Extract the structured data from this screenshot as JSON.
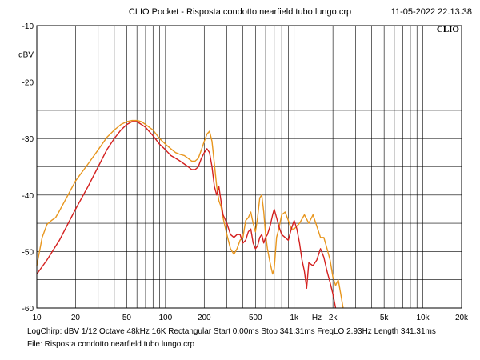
{
  "header": {
    "title": "CLIO Pocket - Risposta condotto nearfield tubo lungo.crp",
    "date": "11-05-2022 22.13.38",
    "brand": "CLIO"
  },
  "footer": {
    "settings": "LogChirp:  dBV  1/12 Octave  48kHz  16K  Rectangular  Start 0.00ms   Stop 341.31ms   FreqLO 2.93Hz   Length 341.31ms",
    "file": "File: Risposta condotto nearfield tubo lungo.crp"
  },
  "chart_data": {
    "type": "line",
    "title": "CLIO Pocket - Risposta condotto nearfield tubo lungo.crp",
    "xlabel": "Hz",
    "ylabel": "dBV",
    "xscale": "log",
    "xlim": [
      10,
      20000
    ],
    "ylim": [
      -60,
      -10
    ],
    "grid": true,
    "x_ticks": [
      {
        "value": 10,
        "label": "10"
      },
      {
        "value": 20,
        "label": "20"
      },
      {
        "value": 50,
        "label": "50"
      },
      {
        "value": 100,
        "label": "100"
      },
      {
        "value": 200,
        "label": "200"
      },
      {
        "value": 500,
        "label": "500"
      },
      {
        "value": 1000,
        "label": "1k"
      },
      {
        "value": 2000,
        "label": "2k"
      },
      {
        "value": 5000,
        "label": "5k"
      },
      {
        "value": 10000,
        "label": "10k"
      },
      {
        "value": 20000,
        "label": "20k"
      }
    ],
    "x_unit_label": {
      "value": 1500,
      "label": "Hz"
    },
    "y_ticks": [
      {
        "value": -10,
        "label": "-10"
      },
      {
        "value": -20,
        "label": "-20"
      },
      {
        "value": -30,
        "label": "-30"
      },
      {
        "value": -40,
        "label": "-40"
      },
      {
        "value": -50,
        "label": "-50"
      },
      {
        "value": -60,
        "label": "-60"
      }
    ],
    "y_unit_label": {
      "value": -15,
      "label": "dBV"
    },
    "series": [
      {
        "color": "#e8961e",
        "points": [
          [
            10,
            -52.5
          ],
          [
            11,
            -47.5
          ],
          [
            12,
            -45.2
          ],
          [
            13,
            -44.5
          ],
          [
            14,
            -44.0
          ],
          [
            15,
            -42.8
          ],
          [
            17,
            -40.5
          ],
          [
            20,
            -37.5
          ],
          [
            25,
            -34.5
          ],
          [
            30,
            -32.0
          ],
          [
            35,
            -29.8
          ],
          [
            40,
            -28.5
          ],
          [
            45,
            -27.5
          ],
          [
            50,
            -27.0
          ],
          [
            55,
            -26.8
          ],
          [
            60,
            -26.8
          ],
          [
            65,
            -27.0
          ],
          [
            70,
            -27.5
          ],
          [
            80,
            -28.5
          ],
          [
            90,
            -30.0
          ],
          [
            100,
            -31.0
          ],
          [
            110,
            -31.8
          ],
          [
            120,
            -32.5
          ],
          [
            130,
            -32.8
          ],
          [
            140,
            -33.0
          ],
          [
            150,
            -33.5
          ],
          [
            160,
            -34.0
          ],
          [
            170,
            -34.0
          ],
          [
            180,
            -33.5
          ],
          [
            190,
            -32.0
          ],
          [
            200,
            -30.5
          ],
          [
            210,
            -29.2
          ],
          [
            220,
            -28.7
          ],
          [
            230,
            -30.5
          ],
          [
            240,
            -34.5
          ],
          [
            250,
            -38.5
          ],
          [
            260,
            -41.0
          ],
          [
            270,
            -42.0
          ],
          [
            280,
            -44.0
          ],
          [
            300,
            -47.0
          ],
          [
            320,
            -49.5
          ],
          [
            340,
            -50.5
          ],
          [
            360,
            -49.5
          ],
          [
            380,
            -48.0
          ],
          [
            400,
            -47.5
          ],
          [
            420,
            -44.5
          ],
          [
            440,
            -44.0
          ],
          [
            460,
            -43.0
          ],
          [
            480,
            -45.0
          ],
          [
            500,
            -46.5
          ],
          [
            520,
            -44.0
          ],
          [
            540,
            -40.5
          ],
          [
            560,
            -40.0
          ],
          [
            580,
            -43.0
          ],
          [
            600,
            -47.0
          ],
          [
            620,
            -49.5
          ],
          [
            650,
            -52.0
          ],
          [
            680,
            -54.0
          ],
          [
            700,
            -53.0
          ],
          [
            730,
            -47.5
          ],
          [
            760,
            -46.0
          ],
          [
            800,
            -43.5
          ],
          [
            850,
            -43.0
          ],
          [
            900,
            -44.5
          ],
          [
            950,
            -46.0
          ],
          [
            1000,
            -46.0
          ],
          [
            1100,
            -45.0
          ],
          [
            1200,
            -43.5
          ],
          [
            1300,
            -45.0
          ],
          [
            1400,
            -43.5
          ],
          [
            1500,
            -45.5
          ],
          [
            1600,
            -47.5
          ],
          [
            1700,
            -47.5
          ],
          [
            1800,
            -49.5
          ],
          [
            1900,
            -51.5
          ],
          [
            2000,
            -54.5
          ],
          [
            2100,
            -56.0
          ],
          [
            2200,
            -55.0
          ],
          [
            2300,
            -57.5
          ],
          [
            2400,
            -60.5
          ]
        ]
      },
      {
        "color": "#d4201f",
        "points": [
          [
            10,
            -54.0
          ],
          [
            12,
            -51.5
          ],
          [
            15,
            -48.0
          ],
          [
            20,
            -42.5
          ],
          [
            25,
            -38.5
          ],
          [
            30,
            -35.0
          ],
          [
            35,
            -32.0
          ],
          [
            40,
            -30.0
          ],
          [
            45,
            -28.5
          ],
          [
            50,
            -27.5
          ],
          [
            55,
            -27.0
          ],
          [
            60,
            -27.0
          ],
          [
            65,
            -27.5
          ],
          [
            70,
            -28.0
          ],
          [
            80,
            -29.5
          ],
          [
            90,
            -31.0
          ],
          [
            100,
            -32.0
          ],
          [
            110,
            -33.0
          ],
          [
            120,
            -33.5
          ],
          [
            130,
            -34.0
          ],
          [
            140,
            -34.5
          ],
          [
            150,
            -35.0
          ],
          [
            160,
            -35.5
          ],
          [
            170,
            -35.5
          ],
          [
            180,
            -35.0
          ],
          [
            190,
            -33.5
          ],
          [
            200,
            -32.5
          ],
          [
            210,
            -31.8
          ],
          [
            220,
            -32.5
          ],
          [
            230,
            -35.0
          ],
          [
            240,
            -38.5
          ],
          [
            250,
            -40.0
          ],
          [
            260,
            -38.5
          ],
          [
            270,
            -41.0
          ],
          [
            280,
            -43.5
          ],
          [
            300,
            -45.0
          ],
          [
            320,
            -47.0
          ],
          [
            340,
            -47.5
          ],
          [
            360,
            -47.0
          ],
          [
            380,
            -47.0
          ],
          [
            400,
            -48.5
          ],
          [
            420,
            -48.0
          ],
          [
            440,
            -46.5
          ],
          [
            460,
            -46.0
          ],
          [
            480,
            -48.5
          ],
          [
            500,
            -49.5
          ],
          [
            520,
            -49.0
          ],
          [
            540,
            -47.5
          ],
          [
            560,
            -47.0
          ],
          [
            580,
            -48.5
          ],
          [
            600,
            -47.5
          ],
          [
            620,
            -47.0
          ],
          [
            650,
            -45.5
          ],
          [
            680,
            -43.5
          ],
          [
            700,
            -42.5
          ],
          [
            730,
            -44.0
          ],
          [
            760,
            -45.5
          ],
          [
            800,
            -47.0
          ],
          [
            850,
            -47.5
          ],
          [
            900,
            -48.0
          ],
          [
            950,
            -46.0
          ],
          [
            1000,
            -44.5
          ],
          [
            1050,
            -46.0
          ],
          [
            1100,
            -48.5
          ],
          [
            1150,
            -51.5
          ],
          [
            1200,
            -53.5
          ],
          [
            1250,
            -56.5
          ],
          [
            1300,
            -52.0
          ],
          [
            1400,
            -52.5
          ],
          [
            1500,
            -51.5
          ],
          [
            1600,
            -49.5
          ],
          [
            1700,
            -51.0
          ],
          [
            1800,
            -53.5
          ],
          [
            1900,
            -55.5
          ],
          [
            2000,
            -57.5
          ],
          [
            2100,
            -60.5
          ]
        ]
      }
    ]
  }
}
